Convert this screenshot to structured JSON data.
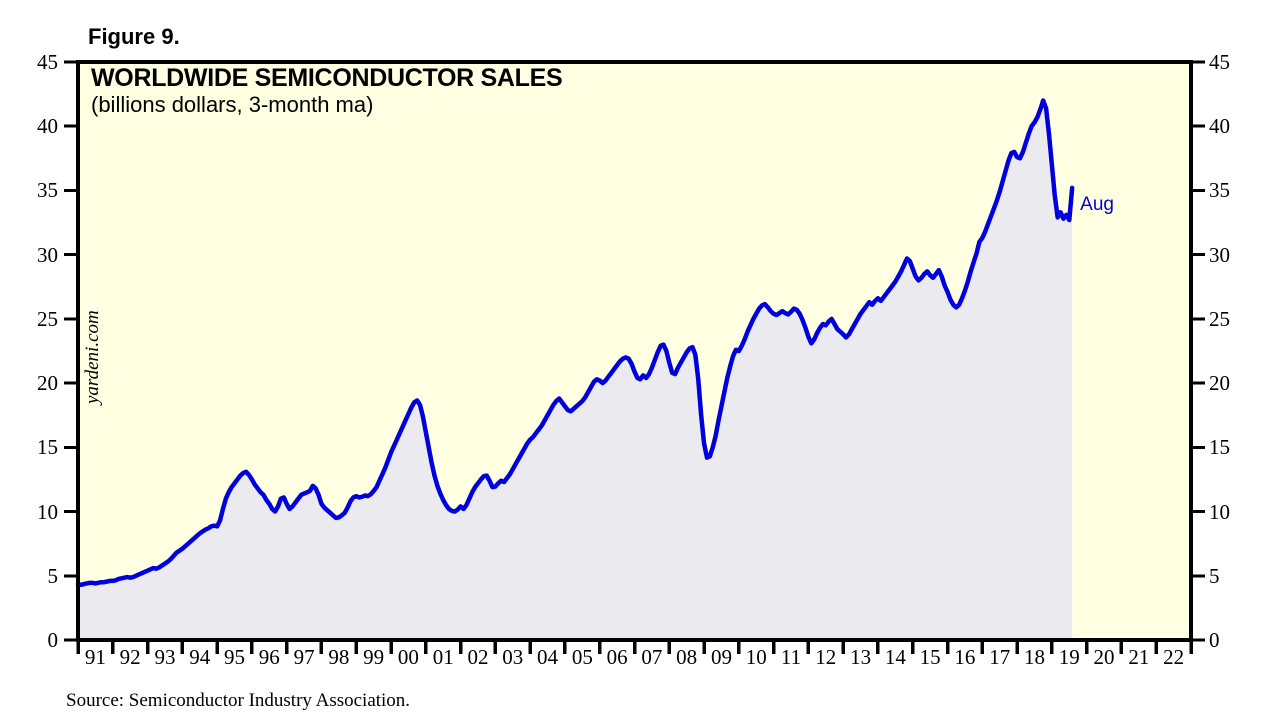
{
  "figure_label": "Figure 9.",
  "source": "Source: Semiconductor Industry Association.",
  "chart_data": {
    "type": "area",
    "title": "WORLDWIDE SEMICONDUCTOR SALES",
    "subtitle": "(billions dollars, 3-month ma)",
    "watermark": "yardeni.com",
    "end_label": "Aug",
    "ylabel": "billions dollars",
    "ylim": [
      0,
      45
    ],
    "y_ticks": [
      0,
      5,
      10,
      15,
      20,
      25,
      30,
      35,
      40,
      45
    ],
    "x_axis_years": [
      "91",
      "92",
      "93",
      "94",
      "95",
      "96",
      "97",
      "98",
      "99",
      "00",
      "01",
      "02",
      "03",
      "04",
      "05",
      "06",
      "07",
      "08",
      "09",
      "10",
      "11",
      "12",
      "13",
      "14",
      "15",
      "16",
      "17",
      "18",
      "19",
      "20",
      "21",
      "22"
    ],
    "grid": "off",
    "legend": "none",
    "last_point": {
      "label": "Aug",
      "year": 2019,
      "month": 8,
      "value": 35.2
    },
    "colors": {
      "line": "#0000DD",
      "fill": "#EAEAEF",
      "plot_bg": "#FFFFE2",
      "axis": "#000000",
      "text": "#000000"
    },
    "series": [
      {
        "name": "Worldwide Semiconductor Sales (3-month moving average, billions of dollars)",
        "frequency": "monthly",
        "start": "1991-01",
        "end": "2019-08",
        "values": [
          4.35,
          4.3,
          4.35,
          4.4,
          4.45,
          4.45,
          4.4,
          4.45,
          4.5,
          4.5,
          4.55,
          4.6,
          4.6,
          4.65,
          4.75,
          4.8,
          4.85,
          4.9,
          4.85,
          4.9,
          5.0,
          5.1,
          5.2,
          5.3,
          5.4,
          5.5,
          5.6,
          5.55,
          5.65,
          5.8,
          5.95,
          6.1,
          6.3,
          6.55,
          6.8,
          6.95,
          7.1,
          7.3,
          7.5,
          7.7,
          7.9,
          8.1,
          8.3,
          8.45,
          8.6,
          8.7,
          8.85,
          8.9,
          8.85,
          9.3,
          10.2,
          11.0,
          11.5,
          11.9,
          12.2,
          12.5,
          12.8,
          13.0,
          13.1,
          12.85,
          12.5,
          12.1,
          11.8,
          11.5,
          11.3,
          10.9,
          10.6,
          10.2,
          10.0,
          10.4,
          11.0,
          11.1,
          10.6,
          10.2,
          10.4,
          10.7,
          11.0,
          11.3,
          11.4,
          11.5,
          11.6,
          12.0,
          11.8,
          11.3,
          10.6,
          10.3,
          10.1,
          9.9,
          9.7,
          9.5,
          9.55,
          9.7,
          9.9,
          10.3,
          10.8,
          11.1,
          11.2,
          11.1,
          11.15,
          11.25,
          11.2,
          11.35,
          11.6,
          11.9,
          12.4,
          12.9,
          13.4,
          14.0,
          14.6,
          15.1,
          15.6,
          16.1,
          16.6,
          17.1,
          17.6,
          18.1,
          18.5,
          18.65,
          18.3,
          17.4,
          16.2,
          15.0,
          13.8,
          12.8,
          12.0,
          11.4,
          10.9,
          10.5,
          10.2,
          10.05,
          10.0,
          10.15,
          10.4,
          10.2,
          10.5,
          11.0,
          11.5,
          11.9,
          12.2,
          12.5,
          12.75,
          12.8,
          12.4,
          11.9,
          11.95,
          12.2,
          12.4,
          12.3,
          12.6,
          12.9,
          13.3,
          13.7,
          14.1,
          14.5,
          14.9,
          15.3,
          15.6,
          15.8,
          16.1,
          16.4,
          16.7,
          17.1,
          17.5,
          17.9,
          18.3,
          18.6,
          18.8,
          18.5,
          18.2,
          17.9,
          17.8,
          18.0,
          18.2,
          18.4,
          18.6,
          18.9,
          19.3,
          19.7,
          20.1,
          20.3,
          20.2,
          20.0,
          20.2,
          20.5,
          20.8,
          21.1,
          21.4,
          21.7,
          21.9,
          22.0,
          21.9,
          21.5,
          20.9,
          20.4,
          20.3,
          20.6,
          20.4,
          20.7,
          21.2,
          21.8,
          22.4,
          22.9,
          23.0,
          22.5,
          21.6,
          20.8,
          20.7,
          21.2,
          21.6,
          22.0,
          22.4,
          22.7,
          22.8,
          22.2,
          20.3,
          17.5,
          15.3,
          14.2,
          14.3,
          15.0,
          15.9,
          17.1,
          18.2,
          19.3,
          20.4,
          21.3,
          22.1,
          22.6,
          22.5,
          22.9,
          23.4,
          24.0,
          24.5,
          25.0,
          25.4,
          25.8,
          26.05,
          26.15,
          25.9,
          25.6,
          25.4,
          25.3,
          25.45,
          25.6,
          25.45,
          25.35,
          25.55,
          25.8,
          25.7,
          25.4,
          24.9,
          24.3,
          23.6,
          23.1,
          23.4,
          23.9,
          24.3,
          24.6,
          24.5,
          24.8,
          25.0,
          24.6,
          24.2,
          24.0,
          23.8,
          23.55,
          23.8,
          24.2,
          24.6,
          25.0,
          25.4,
          25.7,
          26.0,
          26.3,
          26.1,
          26.4,
          26.6,
          26.4,
          26.7,
          27.0,
          27.3,
          27.6,
          27.9,
          28.3,
          28.7,
          29.2,
          29.7,
          29.5,
          28.9,
          28.3,
          28.0,
          28.2,
          28.5,
          28.7,
          28.4,
          28.2,
          28.5,
          28.8,
          28.3,
          27.6,
          27.1,
          26.5,
          26.1,
          25.9,
          26.1,
          26.6,
          27.2,
          27.9,
          28.7,
          29.4,
          30.1,
          31.0,
          31.3,
          31.8,
          32.4,
          33.0,
          33.6,
          34.2,
          34.9,
          35.7,
          36.5,
          37.3,
          37.9,
          38.0,
          37.6,
          37.5,
          38.0,
          38.7,
          39.4,
          40.0,
          40.3,
          40.7,
          41.3,
          42.0,
          41.4,
          39.4,
          37.0,
          34.6,
          32.9,
          33.3,
          32.8,
          33.1,
          32.7,
          35.2
        ]
      }
    ]
  }
}
